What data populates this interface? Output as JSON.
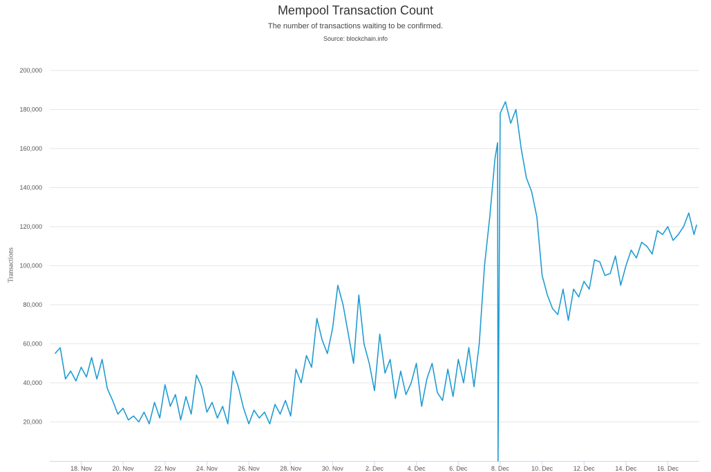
{
  "chart_data": {
    "type": "line",
    "title": "Mempool Transaction Count",
    "subtitle": "The number of transactions waiting to be confirmed.",
    "source": "Source: blockchain.info",
    "xlabel": "",
    "ylabel": "Transactions",
    "ylim": [
      0,
      200000
    ],
    "yticks": [
      20000,
      40000,
      60000,
      80000,
      100000,
      120000,
      140000,
      160000,
      180000,
      200000
    ],
    "ytick_labels": [
      "20,000",
      "40,000",
      "60,000",
      "80,000",
      "100,000",
      "120,000",
      "140,000",
      "160,000",
      "180,000",
      "200,000"
    ],
    "xlim": [
      "2017-11-16T12:00",
      "2017-12-17T12:00"
    ],
    "xticks": [
      "2017-11-18",
      "2017-11-20",
      "2017-11-22",
      "2017-11-24",
      "2017-11-26",
      "2017-11-28",
      "2017-11-30",
      "2017-12-02",
      "2017-12-04",
      "2017-12-06",
      "2017-12-08",
      "2017-12-10",
      "2017-12-12",
      "2017-12-14",
      "2017-12-16"
    ],
    "xtick_labels": [
      "18. Nov",
      "20. Nov",
      "22. Nov",
      "24. Nov",
      "26. Nov",
      "28. Nov",
      "30. Nov",
      "2. Dec",
      "4. Dec",
      "6. Dec",
      "8. Dec",
      "10. Dec",
      "12. Dec",
      "14. Dec",
      "16. Dec"
    ],
    "grid": true,
    "legend": false,
    "colors": {
      "line": "#1f9bd1",
      "grid": "#e6e6e6",
      "axis": "#ccd6eb"
    },
    "series": [
      {
        "x": [
          "2017-11-16T18:00",
          "2017-11-17T00:00",
          "2017-11-17T06:00",
          "2017-11-17T12:00",
          "2017-11-17T18:00",
          "2017-11-18T00:00",
          "2017-11-18T06:00",
          "2017-11-18T12:00",
          "2017-11-18T18:00",
          "2017-11-19T00:00",
          "2017-11-19T06:00",
          "2017-11-19T12:00",
          "2017-11-19T18:00",
          "2017-11-20T00:00",
          "2017-11-20T06:00",
          "2017-11-20T12:00",
          "2017-11-20T18:00",
          "2017-11-21T00:00",
          "2017-11-21T06:00",
          "2017-11-21T12:00",
          "2017-11-21T18:00",
          "2017-11-22T00:00",
          "2017-11-22T06:00",
          "2017-11-22T12:00",
          "2017-11-22T18:00",
          "2017-11-23T00:00",
          "2017-11-23T06:00",
          "2017-11-23T12:00",
          "2017-11-23T18:00",
          "2017-11-24T00:00",
          "2017-11-24T06:00",
          "2017-11-24T12:00",
          "2017-11-24T18:00",
          "2017-11-25T00:00",
          "2017-11-25T06:00",
          "2017-11-25T12:00",
          "2017-11-25T18:00",
          "2017-11-26T00:00",
          "2017-11-26T06:00",
          "2017-11-26T12:00",
          "2017-11-26T18:00",
          "2017-11-27T00:00",
          "2017-11-27T06:00",
          "2017-11-27T12:00",
          "2017-11-27T18:00",
          "2017-11-28T00:00",
          "2017-11-28T06:00",
          "2017-11-28T12:00",
          "2017-11-28T18:00",
          "2017-11-29T00:00",
          "2017-11-29T06:00",
          "2017-11-29T12:00",
          "2017-11-29T18:00",
          "2017-11-30T00:00",
          "2017-11-30T06:00",
          "2017-11-30T12:00",
          "2017-11-30T18:00",
          "2017-12-01T00:00",
          "2017-12-01T06:00",
          "2017-12-01T12:00",
          "2017-12-01T18:00",
          "2017-12-02T00:00",
          "2017-12-02T06:00",
          "2017-12-02T12:00",
          "2017-12-02T18:00",
          "2017-12-03T00:00",
          "2017-12-03T06:00",
          "2017-12-03T12:00",
          "2017-12-03T18:00",
          "2017-12-04T00:00",
          "2017-12-04T06:00",
          "2017-12-04T12:00",
          "2017-12-04T18:00",
          "2017-12-05T00:00",
          "2017-12-05T06:00",
          "2017-12-05T12:00",
          "2017-12-05T18:00",
          "2017-12-06T00:00",
          "2017-12-06T06:00",
          "2017-12-06T12:00",
          "2017-12-06T18:00",
          "2017-12-07T00:00",
          "2017-12-07T06:00",
          "2017-12-07T12:00",
          "2017-12-07T18:00",
          "2017-12-07T21:00",
          "2017-12-07T21:30",
          "2017-12-08T00:00",
          "2017-12-08T06:00",
          "2017-12-08T12:00",
          "2017-12-08T18:00",
          "2017-12-09T00:00",
          "2017-12-09T06:00",
          "2017-12-09T12:00",
          "2017-12-09T18:00",
          "2017-12-10T00:00",
          "2017-12-10T06:00",
          "2017-12-10T12:00",
          "2017-12-10T18:00",
          "2017-12-11T00:00",
          "2017-12-11T06:00",
          "2017-12-11T12:00",
          "2017-12-11T18:00",
          "2017-12-12T00:00",
          "2017-12-12T06:00",
          "2017-12-12T12:00",
          "2017-12-12T18:00",
          "2017-12-13T00:00",
          "2017-12-13T06:00",
          "2017-12-13T12:00",
          "2017-12-13T18:00",
          "2017-12-14T00:00",
          "2017-12-14T06:00",
          "2017-12-14T12:00",
          "2017-12-14T18:00",
          "2017-12-15T00:00",
          "2017-12-15T06:00",
          "2017-12-15T12:00",
          "2017-12-15T18:00",
          "2017-12-16T00:00",
          "2017-12-16T06:00",
          "2017-12-16T12:00",
          "2017-12-16T18:00",
          "2017-12-17T00:00",
          "2017-12-17T06:00",
          "2017-12-17T09:00"
        ],
        "y": [
          55000,
          58000,
          42000,
          46000,
          41000,
          48000,
          43000,
          53000,
          42000,
          52000,
          37000,
          31000,
          24000,
          27000,
          21000,
          23000,
          20000,
          25000,
          19000,
          30000,
          22000,
          39000,
          28000,
          34000,
          21000,
          33000,
          24000,
          44000,
          38000,
          25000,
          30000,
          22000,
          28000,
          19000,
          46000,
          38000,
          27000,
          19000,
          26000,
          22000,
          25000,
          19000,
          29000,
          24000,
          31000,
          23000,
          47000,
          40000,
          54000,
          48000,
          73000,
          62000,
          55000,
          68000,
          90000,
          80000,
          65000,
          50000,
          85000,
          60000,
          50000,
          36000,
          65000,
          45000,
          52000,
          32000,
          46000,
          34000,
          40000,
          50000,
          28000,
          42000,
          50000,
          35000,
          31000,
          47000,
          33000,
          52000,
          40000,
          58000,
          38000,
          60000,
          100000,
          125000,
          155000,
          163000,
          0,
          178000,
          184000,
          173000,
          180000,
          160000,
          145000,
          138000,
          125000,
          95000,
          85000,
          78000,
          75000,
          88000,
          72000,
          88000,
          84000,
          92000,
          88000,
          103000,
          102000,
          95000,
          96000,
          105000,
          90000,
          100000,
          108000,
          104000,
          112000,
          110000,
          106000,
          118000,
          116000,
          120000,
          113000,
          116000,
          120000,
          127000,
          116000,
          121000
        ]
      }
    ]
  }
}
